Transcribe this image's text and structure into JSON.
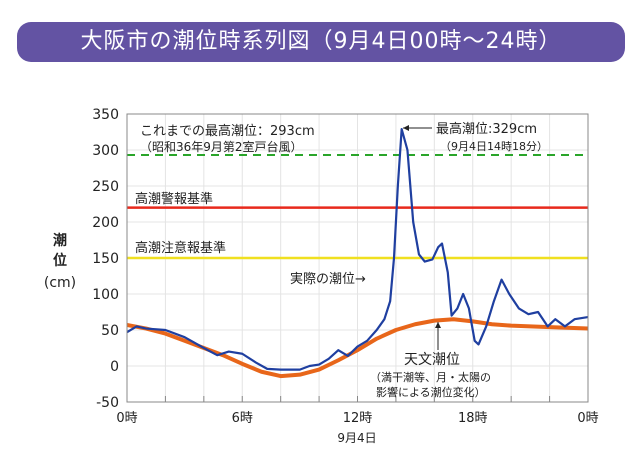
{
  "title": "大阪市の潮位時系列図（9月4日00時～24時）",
  "chart_data": {
    "type": "line",
    "ylabel": [
      "潮",
      "位",
      "(cm)"
    ],
    "xlim": [
      0,
      24
    ],
    "ylim": [
      -50,
      350
    ],
    "grid": true,
    "yticks": [
      -50,
      0,
      50,
      100,
      150,
      200,
      250,
      300,
      350
    ],
    "xticks": [
      {
        "x": 0,
        "label": "0時"
      },
      {
        "x": 6,
        "label": "6時"
      },
      {
        "x": 12,
        "label": "12時"
      },
      {
        "x": 18,
        "label": "18時"
      },
      {
        "x": 24,
        "label": "0時"
      }
    ],
    "xsublabel": "9月4日",
    "series": [
      {
        "name": "実際の潮位→",
        "color": "#1f3fa0",
        "points": [
          [
            0,
            47
          ],
          [
            0.5,
            55
          ],
          [
            1,
            52
          ],
          [
            2,
            50
          ],
          [
            3,
            40
          ],
          [
            4,
            25
          ],
          [
            4.7,
            15
          ],
          [
            5.3,
            20
          ],
          [
            6,
            17
          ],
          [
            6.7,
            5
          ],
          [
            7.3,
            -4
          ],
          [
            8,
            -5
          ],
          [
            9,
            -5
          ],
          [
            9.5,
            0
          ],
          [
            10,
            2
          ],
          [
            10.5,
            10
          ],
          [
            11,
            22
          ],
          [
            11.5,
            14
          ],
          [
            12,
            27
          ],
          [
            12.5,
            35
          ],
          [
            13,
            50
          ],
          [
            13.4,
            65
          ],
          [
            13.7,
            90
          ],
          [
            13.9,
            150
          ],
          [
            14.1,
            250
          ],
          [
            14.3,
            329
          ],
          [
            14.6,
            300
          ],
          [
            14.9,
            200
          ],
          [
            15.2,
            155
          ],
          [
            15.5,
            145
          ],
          [
            15.9,
            148
          ],
          [
            16.2,
            165
          ],
          [
            16.4,
            170
          ],
          [
            16.7,
            130
          ],
          [
            16.9,
            70
          ],
          [
            17.2,
            80
          ],
          [
            17.5,
            100
          ],
          [
            17.8,
            80
          ],
          [
            18.1,
            35
          ],
          [
            18.3,
            30
          ],
          [
            18.7,
            55
          ],
          [
            19.1,
            90
          ],
          [
            19.5,
            120
          ],
          [
            19.9,
            100
          ],
          [
            20.4,
            80
          ],
          [
            20.9,
            72
          ],
          [
            21.4,
            75
          ],
          [
            21.9,
            55
          ],
          [
            22.3,
            65
          ],
          [
            22.8,
            55
          ],
          [
            23.3,
            65
          ],
          [
            24,
            68
          ]
        ]
      },
      {
        "name": "天文潮位",
        "color": "#e8661a",
        "points": [
          [
            0,
            57
          ],
          [
            1,
            52
          ],
          [
            2,
            45
          ],
          [
            3,
            35
          ],
          [
            4,
            25
          ],
          [
            5,
            15
          ],
          [
            6,
            3
          ],
          [
            7,
            -8
          ],
          [
            8,
            -14
          ],
          [
            9,
            -12
          ],
          [
            10,
            -5
          ],
          [
            11,
            8
          ],
          [
            12,
            22
          ],
          [
            13,
            38
          ],
          [
            14,
            50
          ],
          [
            15,
            58
          ],
          [
            16,
            63
          ],
          [
            17,
            65
          ],
          [
            18,
            62
          ],
          [
            19,
            58
          ],
          [
            20,
            56
          ],
          [
            22,
            54
          ],
          [
            24,
            52
          ]
        ]
      }
    ],
    "reference_lines": [
      {
        "value": 293,
        "color": "#2aa52a",
        "style": "dashed",
        "label": "これまでの最高潮位：293cm",
        "sublabel": "（昭和36年9月第2室戸台風）"
      },
      {
        "value": 220,
        "color": "#e8291c",
        "style": "solid",
        "label": "高潮警報基準"
      },
      {
        "value": 150,
        "color": "#f0e020",
        "style": "solid",
        "label": "高潮注意報基準"
      }
    ],
    "annotations": {
      "peak_label": "最高潮位:329cm",
      "peak_sub": "（9月4日14時18分）",
      "actual_label": "実際の潮位→",
      "astro_label": "天文潮位",
      "astro_sub1": "（満干潮等、月・太陽の",
      "astro_sub2": "影響による潮位変化）"
    }
  }
}
